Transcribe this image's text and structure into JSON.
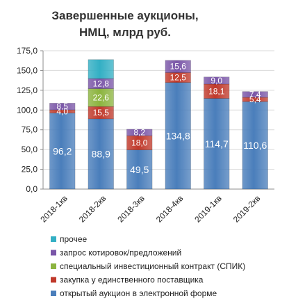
{
  "chart_data": {
    "type": "bar",
    "stacked": true,
    "title": "Завершенные аукционы, НМЦ, млрд руб.",
    "title_lines": [
      "Завершенные аукционы,",
      "НМЦ, млрд руб."
    ],
    "categories": [
      "2018-1кв",
      "2018-2кв",
      "2018-3кв",
      "2018-4кв",
      "2019-1кв",
      "2019-2кв"
    ],
    "ylim": [
      0,
      175
    ],
    "yticks": [
      "0,0",
      "25,0",
      "50,0",
      "75,0",
      "100,0",
      "125,0",
      "150,0",
      "175,0"
    ],
    "ytick_values": [
      0,
      25,
      50,
      75,
      100,
      125,
      150,
      175
    ],
    "grid": true,
    "legend_position": "bottom",
    "series": [
      {
        "name": "открытый аукцион в электронной форме",
        "color": "#4a7ebb",
        "values": [
          96.2,
          88.9,
          49.5,
          134.8,
          114.7,
          110.6
        ],
        "labels": [
          "96,2",
          "88,9",
          "49,5",
          "134,8",
          "114,7",
          "110,6"
        ]
      },
      {
        "name": "закупка у единственного поставщика",
        "color": "#c0392b",
        "values": [
          4.0,
          15.5,
          18.0,
          12.5,
          18.1,
          5.4
        ],
        "labels": [
          "4,0",
          "15,5",
          "18,0",
          "12,5",
          "18,1",
          "5,4"
        ]
      },
      {
        "name": "специальный инвестиционный контракт (СПИК)",
        "color": "#8cb43f",
        "values": [
          0,
          22.6,
          0,
          0,
          0,
          0
        ],
        "labels": [
          "",
          "22,6",
          "",
          "",
          "",
          ""
        ]
      },
      {
        "name": "запрос котировок/предложений",
        "color": "#7a56a8",
        "values": [
          8.5,
          12.8,
          8.2,
          15.6,
          9.0,
          7.4
        ],
        "labels": [
          "8,5",
          "12,8",
          "8,2",
          "15,6",
          "9,0",
          "7,4"
        ]
      },
      {
        "name": "прочее",
        "color": "#33afc4",
        "values": [
          0,
          24.0,
          0,
          0,
          0,
          0
        ],
        "labels": [
          "",
          "",
          "",
          "",
          "",
          ""
        ]
      }
    ],
    "legend_order": [
      4,
      3,
      2,
      1,
      0
    ]
  }
}
